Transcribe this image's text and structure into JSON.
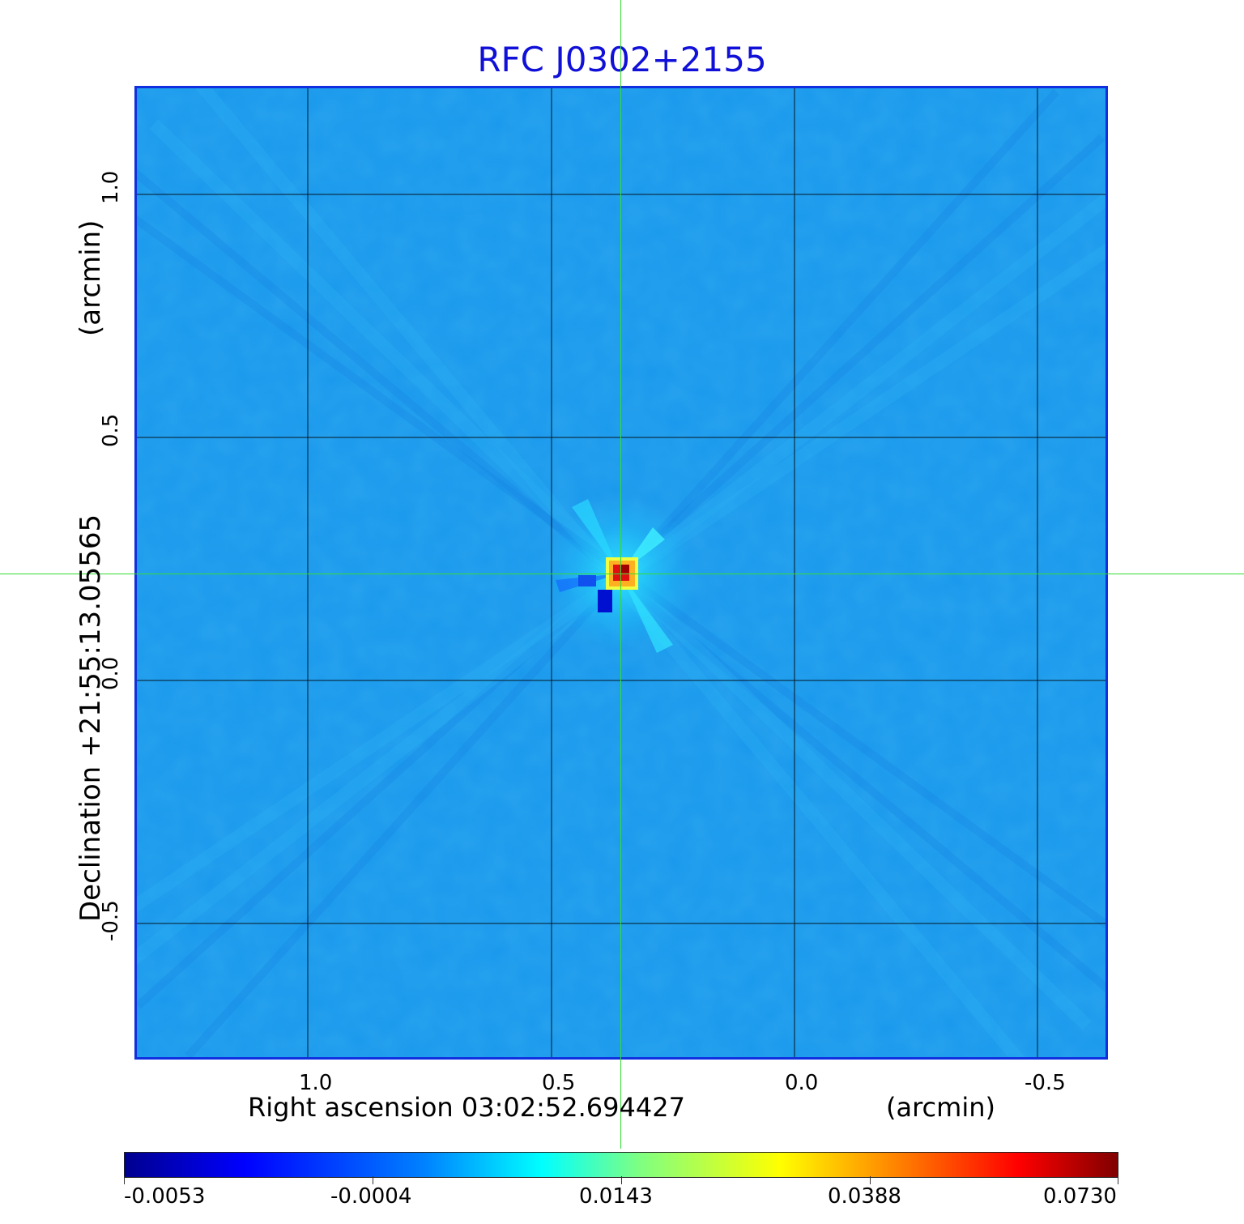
{
  "title": "RFC J0302+2155",
  "x_axis": {
    "label": "Right ascension  03:02:52.694427",
    "unit": "(arcmin)",
    "ticks": [
      "1.0",
      "0.5",
      "0.0",
      "-0.5"
    ]
  },
  "y_axis": {
    "label": "Declination  +21:55:13.05565",
    "unit": "(arcmin)",
    "ticks": [
      "1.0",
      "0.5",
      "0.0",
      "-0.5"
    ]
  },
  "colorbar": {
    "colormap": "jet",
    "ticks": [
      "-0.0053",
      "-0.0004",
      "0.0143",
      "0.0388",
      "0.0730"
    ]
  },
  "colors": {
    "title": "#1010d8",
    "frame": "#1030e0",
    "crosshair": "#33dd33",
    "background_field": "#1a9aee"
  }
}
